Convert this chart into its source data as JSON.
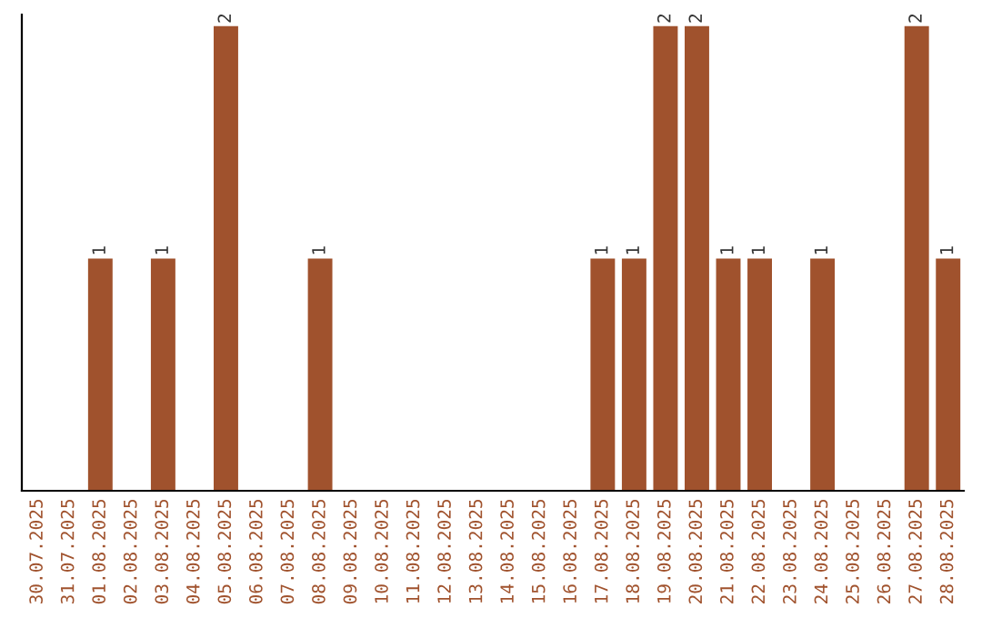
{
  "chart_data": {
    "type": "bar",
    "categories": [
      "30.07.2025",
      "31.07.2025",
      "01.08.2025",
      "02.08.2025",
      "03.08.2025",
      "04.08.2025",
      "05.08.2025",
      "06.08.2025",
      "07.08.2025",
      "08.08.2025",
      "09.08.2025",
      "10.08.2025",
      "11.08.2025",
      "12.08.2025",
      "13.08.2025",
      "14.08.2025",
      "15.08.2025",
      "16.08.2025",
      "17.08.2025",
      "18.08.2025",
      "19.08.2025",
      "20.08.2025",
      "21.08.2025",
      "22.08.2025",
      "23.08.2025",
      "24.08.2025",
      "25.08.2025",
      "26.08.2025",
      "27.08.2025",
      "28.08.2025"
    ],
    "values": [
      0,
      0,
      1,
      0,
      1,
      0,
      2,
      0,
      0,
      1,
      0,
      0,
      0,
      0,
      0,
      0,
      0,
      0,
      1,
      1,
      2,
      2,
      1,
      1,
      0,
      1,
      0,
      0,
      2,
      1
    ],
    "value_labels": [
      null,
      null,
      "1",
      null,
      "1",
      null,
      "2",
      null,
      null,
      "1",
      null,
      null,
      null,
      null,
      null,
      null,
      null,
      null,
      "1",
      "1",
      "2",
      "2",
      "1",
      "1",
      null,
      "1",
      null,
      null,
      "2",
      "1"
    ],
    "color": "#a0522d",
    "ylim": [
      0,
      2.05
    ],
    "grid": false,
    "legend": false
  }
}
